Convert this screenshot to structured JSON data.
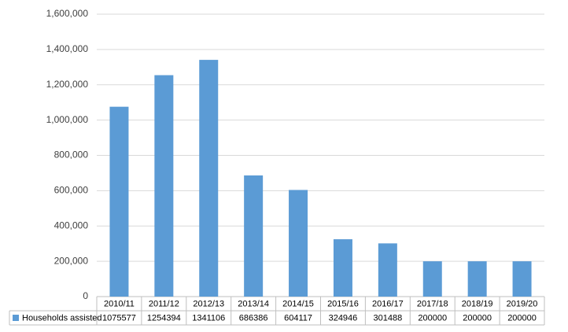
{
  "chart_data": {
    "type": "bar",
    "categories": [
      "2010/11",
      "2011/12",
      "2012/13",
      "2013/14",
      "2014/15",
      "2015/16",
      "2016/17",
      "2017/18",
      "2018/19",
      "2019/20"
    ],
    "series": [
      {
        "name": "Households assisted",
        "color": "#5b9bd5",
        "values": [
          1075577,
          1254394,
          1341106,
          686386,
          604117,
          324946,
          301488,
          200000,
          200000,
          200000
        ]
      }
    ],
    "ylim": [
      0,
      1600000
    ],
    "yticks": [
      0,
      {
        "value": 200000,
        "label": "200,000"
      },
      {
        "value": 400000,
        "label": "400,000"
      },
      {
        "value": 600000,
        "label": "600,000"
      },
      {
        "value": 800000,
        "label": "800,000"
      },
      {
        "value": 1000000,
        "label": "1,000,000"
      },
      {
        "value": 1200000,
        "label": "1,200,000"
      },
      {
        "value": 1400000,
        "label": "1,400,000"
      },
      {
        "value": 1600000,
        "label": "1,600,000"
      }
    ],
    "grid": true
  }
}
